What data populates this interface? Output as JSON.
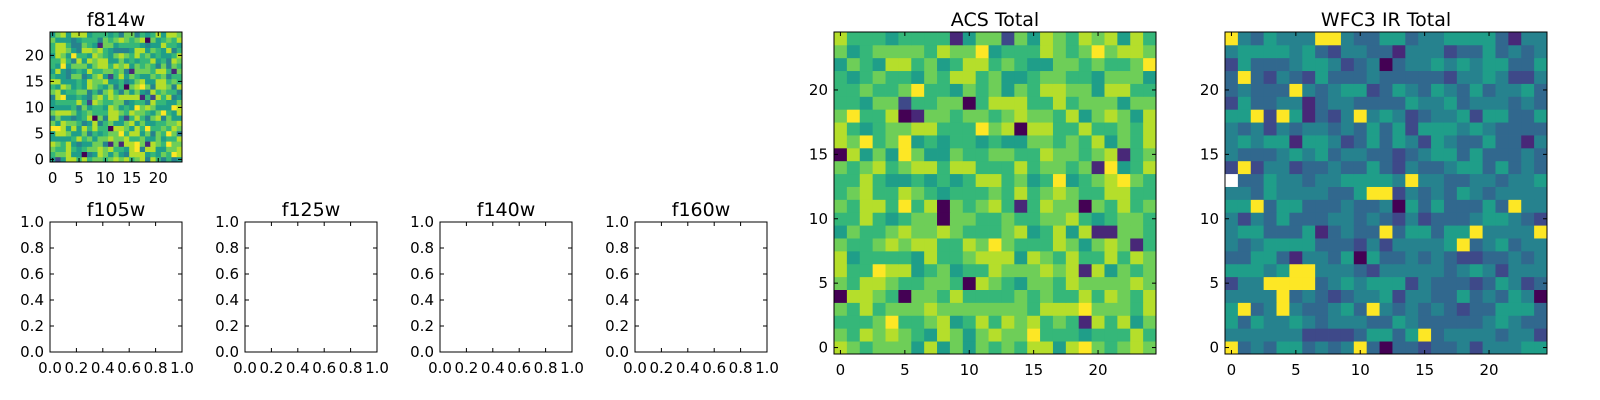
{
  "chart_data": [
    {
      "type": "heatmap",
      "title": "f814w",
      "grid_size": [
        25,
        25
      ],
      "xlim": [
        -0.5,
        24.5
      ],
      "ylim": [
        -0.5,
        24.5
      ],
      "x_ticks": [
        0,
        5,
        10,
        15,
        20
      ],
      "y_ticks": [
        0,
        5,
        10,
        15,
        20
      ],
      "x_tick_labels": [
        "0",
        "5",
        "10",
        "15",
        "20"
      ],
      "y_tick_labels": [
        "0",
        "5",
        "10",
        "15",
        "20"
      ],
      "colormap": "viridis",
      "value_range": [
        0,
        1
      ],
      "values_note": "random pixel noise, mostly high (green-yellow) values",
      "seed": 814,
      "bias": 0.68,
      "spread": 0.22,
      "hot_cells": [],
      "missing_cells": []
    },
    {
      "type": "heatmap",
      "title": "f105w",
      "empty": true,
      "xlim": [
        0,
        1
      ],
      "ylim": [
        0,
        1
      ],
      "x_tick_labels": [
        "0.0",
        "0.2",
        "0.4",
        "0.6",
        "0.8",
        "1.0"
      ],
      "y_tick_labels": [
        "0.0",
        "0.2",
        "0.4",
        "0.6",
        "0.8",
        "1.0"
      ]
    },
    {
      "type": "heatmap",
      "title": "f125w",
      "empty": true,
      "xlim": [
        0,
        1
      ],
      "ylim": [
        0,
        1
      ],
      "x_tick_labels": [
        "0.0",
        "0.2",
        "0.4",
        "0.6",
        "0.8",
        "1.0"
      ],
      "y_tick_labels": [
        "0.0",
        "0.2",
        "0.4",
        "0.6",
        "0.8",
        "1.0"
      ]
    },
    {
      "type": "heatmap",
      "title": "f140w",
      "empty": true,
      "xlim": [
        0,
        1
      ],
      "ylim": [
        0,
        1
      ],
      "x_tick_labels": [
        "0.0",
        "0.2",
        "0.4",
        "0.6",
        "0.8",
        "1.0"
      ],
      "y_tick_labels": [
        "0.0",
        "0.2",
        "0.4",
        "0.6",
        "0.8",
        "1.0"
      ]
    },
    {
      "type": "heatmap",
      "title": "f160w",
      "empty": true,
      "xlim": [
        0,
        1
      ],
      "ylim": [
        0,
        1
      ],
      "x_tick_labels": [
        "0.0",
        "0.2",
        "0.4",
        "0.6",
        "0.8",
        "1.0"
      ],
      "y_tick_labels": [
        "0.0",
        "0.2",
        "0.4",
        "0.6",
        "0.8",
        "1.0"
      ]
    },
    {
      "type": "heatmap",
      "title": "ACS Total",
      "grid_size": [
        25,
        25
      ],
      "xlim": [
        -0.5,
        24.5
      ],
      "ylim": [
        -0.5,
        24.5
      ],
      "x_ticks": [
        0,
        5,
        10,
        15,
        20
      ],
      "y_ticks": [
        0,
        5,
        10,
        15,
        20
      ],
      "x_tick_labels": [
        "0",
        "5",
        "10",
        "15",
        "20"
      ],
      "y_tick_labels": [
        "0",
        "5",
        "10",
        "15",
        "20"
      ],
      "colormap": "viridis",
      "value_range": [
        0,
        1
      ],
      "values_note": "random pixel noise, mostly high (green-yellow) values with a few dark outliers",
      "seed": 2024,
      "bias": 0.72,
      "spread": 0.16,
      "hot_cells": [],
      "missing_cells": []
    },
    {
      "type": "heatmap",
      "title": "WFC3 IR Total",
      "grid_size": [
        25,
        25
      ],
      "xlim": [
        -0.5,
        24.5
      ],
      "ylim": [
        -0.5,
        24.5
      ],
      "x_ticks": [
        0,
        5,
        10,
        15,
        20
      ],
      "y_ticks": [
        0,
        5,
        10,
        15,
        20
      ],
      "x_tick_labels": [
        "0",
        "5",
        "10",
        "15",
        "20"
      ],
      "y_tick_labels": [
        "0",
        "5",
        "10",
        "15",
        "20"
      ],
      "colormap": "viridis",
      "value_range": [
        0,
        1
      ],
      "values_note": "random pixel noise, mostly low-mid (blue-teal) values with a bright yellow patch near (5,5)",
      "seed": 3131,
      "bias": 0.42,
      "spread": 0.14,
      "hot_cells": [
        [
          3,
          5
        ],
        [
          4,
          5
        ],
        [
          5,
          5
        ],
        [
          6,
          5
        ],
        [
          4,
          4
        ],
        [
          5,
          6
        ],
        [
          6,
          6
        ],
        [
          11,
          12
        ],
        [
          12,
          12
        ]
      ],
      "missing_cells": [
        [
          0,
          13
        ]
      ]
    }
  ],
  "colors": {
    "viridis": [
      "#440154",
      "#482878",
      "#3e4989",
      "#31688e",
      "#26828e",
      "#1f9e89",
      "#35b779",
      "#6ece58",
      "#b5de2b",
      "#fde725"
    ],
    "axis": "#000000",
    "background": "#ffffff"
  }
}
